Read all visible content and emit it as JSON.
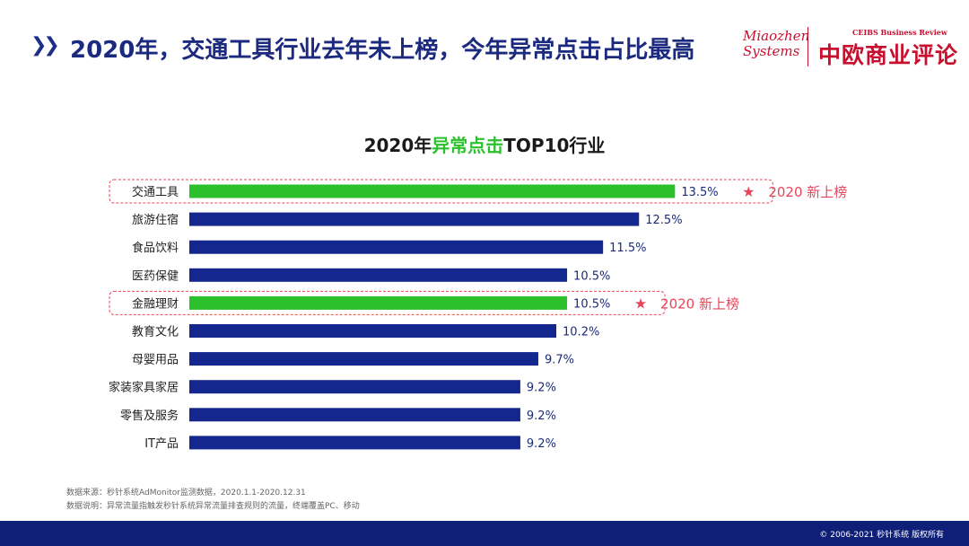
{
  "header": {
    "title": "2020年，交通工具行业去年未上榜，今年异常点击占比最高",
    "logo_left": "Miaozhen Systems",
    "logo_right_en": "CEIBS Business Review",
    "logo_right_cn": "中欧商业评论"
  },
  "chart_title": {
    "prefix": "2020年",
    "highlight": "异常点击",
    "suffix": "TOP10行业"
  },
  "chart_data": {
    "type": "bar",
    "orientation": "horizontal",
    "title": "2020年异常点击TOP10行业",
    "categories": [
      "交通工具",
      "旅游住宿",
      "食品饮料",
      "医药保健",
      "金融理财",
      "教育文化",
      "母婴用品",
      "家装家具家居",
      "零售及服务",
      "IT产品"
    ],
    "values": [
      13.5,
      12.5,
      11.5,
      10.5,
      10.5,
      10.2,
      9.7,
      9.2,
      9.2,
      9.2
    ],
    "value_labels": [
      "13.5%",
      "12.5%",
      "11.5%",
      "10.5%",
      "10.5%",
      "10.2%",
      "9.7%",
      "9.2%",
      "9.2%",
      "9.2%"
    ],
    "new_entry": [
      true,
      false,
      false,
      false,
      true,
      false,
      false,
      false,
      false,
      false
    ],
    "new_entry_label": "2020 新上榜",
    "star": "★",
    "colors": {
      "default": "#13278e",
      "new_entry": "#2dc02d",
      "annotation": "#e8455a"
    }
  },
  "footnotes": {
    "source": "数据来源：秒针系统AdMonitor监测数据，2020.1.1-2020.12.31",
    "note": "数据说明：异常流量指触发秒针系统异常流量排查规则的流量，终端覆盖PC、移动"
  },
  "footer": {
    "copyright": "© 2006-2021  秒针系统 版权所有"
  }
}
